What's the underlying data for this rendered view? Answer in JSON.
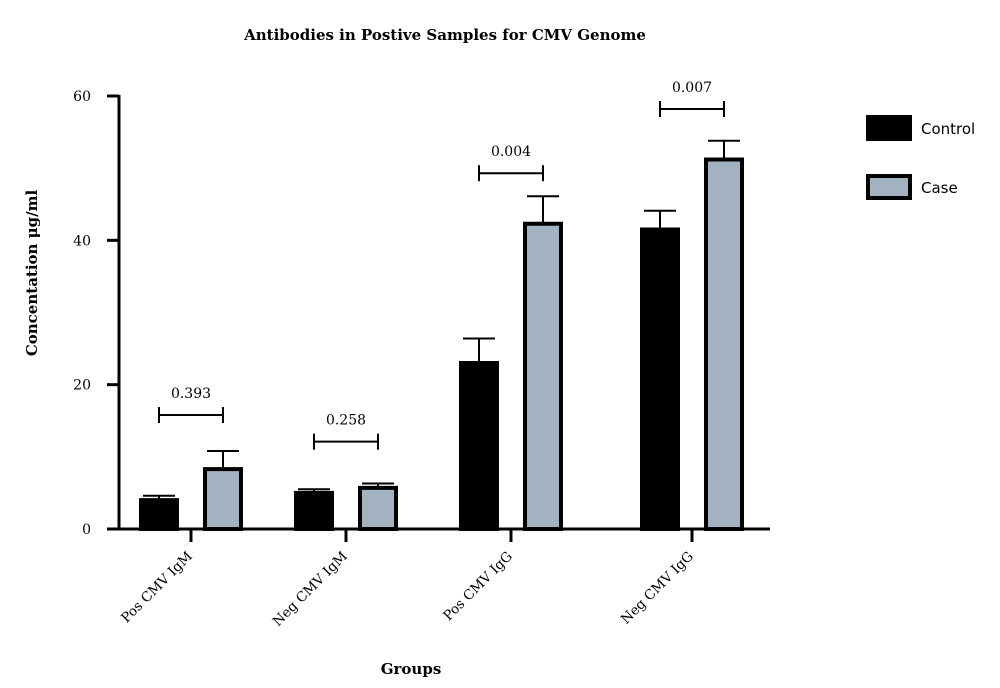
{
  "chart_data": {
    "type": "bar",
    "title": "Antibodies in Postive Samples for CMV Genome",
    "xlabel": "Groups",
    "ylabel": "Concentation μg/ml",
    "ylim": [
      0,
      60
    ],
    "yticks": [
      0,
      20,
      40,
      60
    ],
    "categories": [
      "Pos CMV IgM",
      "Neg CMV IgM",
      "Pos CMV IgG",
      "Neg CMV IgG"
    ],
    "series": [
      {
        "name": "Control",
        "color": "#000000",
        "values": [
          4,
          5,
          23,
          41.5
        ],
        "errors": [
          0.6,
          0.5,
          3.4,
          2.6
        ]
      },
      {
        "name": "Case",
        "color": "#a2b2c0",
        "values": [
          8.3,
          5.7,
          42.3,
          51.2
        ],
        "errors": [
          2.5,
          0.6,
          3.8,
          2.6
        ]
      }
    ],
    "p_values": [
      "0.393",
      "0.258",
      "0.004",
      "0.007"
    ],
    "p_value_levels": [
      15.8,
      12.1,
      49.3,
      58.2
    ],
    "legend": "right",
    "grid": false
  }
}
